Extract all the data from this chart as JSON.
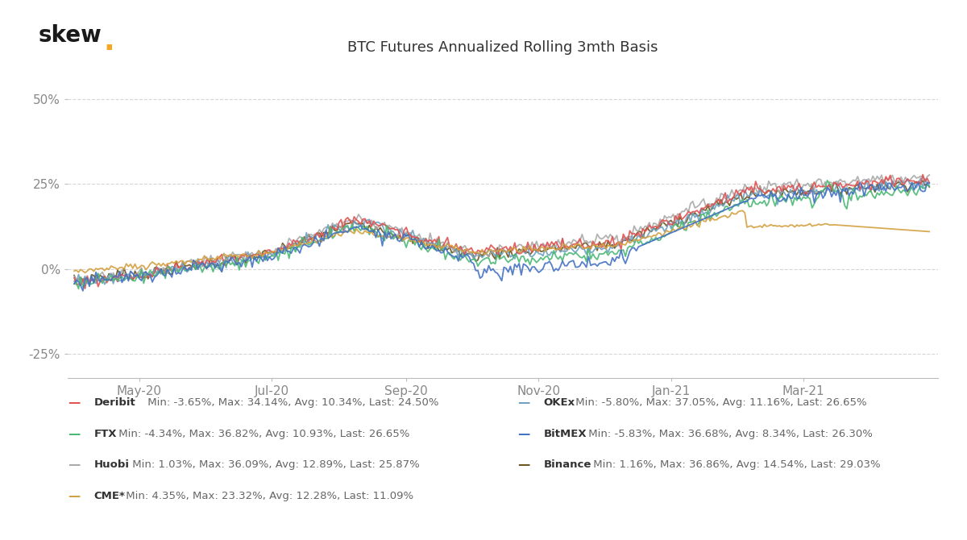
{
  "title": "BTC Futures Annualized Rolling 3mth Basis",
  "skew_dot_color": "#F5A623",
  "background_color": "#ffffff",
  "grid_color": "#cccccc",
  "yticks": [
    -0.25,
    0.0,
    0.25,
    0.5
  ],
  "ytick_labels": [
    "-25%",
    "0%",
    "25%",
    "50%"
  ],
  "ylim": [
    -0.32,
    0.6
  ],
  "n_points": 395,
  "series": {
    "Deribit": {
      "color": "#E05252"
    },
    "FTX": {
      "color": "#4BB974"
    },
    "Huobi": {
      "color": "#AAAAAA"
    },
    "CME": {
      "color": "#D4A040"
    },
    "OKEx": {
      "color": "#6EA0C0"
    },
    "BitMEX": {
      "color": "#4472C4"
    },
    "Binance": {
      "color": "#6B5520"
    }
  },
  "xtick_labels": [
    "May-20",
    "Jul-20",
    "Sep-20",
    "Nov-20",
    "Jan-21",
    "Mar-21"
  ],
  "legend_left": [
    {
      "key": "Deribit",
      "label": "Deribit",
      "stats": " Min: -3.65%, Max: 34.14%, Avg: 10.34%, Last: 24.50%"
    },
    {
      "key": "FTX",
      "label": "FTX",
      "stats": " Min: -4.34%, Max: 36.82%, Avg: 10.93%, Last: 26.65%"
    },
    {
      "key": "Huobi",
      "label": "Huobi",
      "stats": " Min: 1.03%, Max: 36.09%, Avg: 12.89%, Last: 25.87%"
    },
    {
      "key": "CME",
      "label": "CME*",
      "stats": " Min: 4.35%, Max: 23.32%, Avg: 12.28%, Last: 11.09%"
    }
  ],
  "legend_right": [
    {
      "key": "OKEx",
      "label": "OKEx",
      "stats": " Min: -5.80%, Max: 37.05%, Avg: 11.16%, Last: 26.65%"
    },
    {
      "key": "BitMEX",
      "label": "BitMEX",
      "stats": " Min: -5.83%, Max: 36.68%, Avg: 8.34%, Last: 26.30%"
    },
    {
      "key": "Binance",
      "label": "Binance",
      "stats": " Min: 1.16%, Max: 36.86%, Avg: 14.54%, Last: 29.03%"
    }
  ],
  "axis_label_color": "#888888",
  "title_color": "#333333",
  "label_bold_color": "#333333",
  "stats_color": "#666666"
}
